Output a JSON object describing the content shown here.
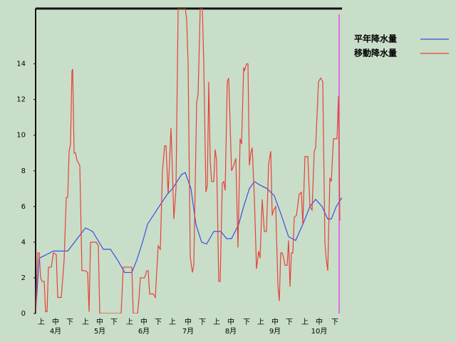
{
  "chart_data": {
    "type": "line",
    "xlim": [
      0,
      215
    ],
    "ylim": [
      0,
      17.1
    ],
    "yticks": [
      0,
      2,
      4,
      6,
      8,
      10,
      12,
      14
    ],
    "xticks": [
      {
        "value": 4,
        "label": "上"
      },
      {
        "value": 14,
        "label": "中"
      },
      {
        "value": 24,
        "label": "下"
      },
      {
        "value": 35,
        "label": "上"
      },
      {
        "value": 45,
        "label": "中"
      },
      {
        "value": 55,
        "label": "下"
      },
      {
        "value": 66,
        "label": "上"
      },
      {
        "value": 76,
        "label": "中"
      },
      {
        "value": 86,
        "label": "下"
      },
      {
        "value": 96,
        "label": "上"
      },
      {
        "value": 107,
        "label": "中"
      },
      {
        "value": 117,
        "label": "下"
      },
      {
        "value": 127,
        "label": "上"
      },
      {
        "value": 137,
        "label": "中"
      },
      {
        "value": 148,
        "label": "下"
      },
      {
        "value": 158,
        "label": "上"
      },
      {
        "value": 168,
        "label": "中"
      },
      {
        "value": 178,
        "label": "下"
      },
      {
        "value": 189,
        "label": "上"
      },
      {
        "value": 199,
        "label": "中"
      },
      {
        "value": 210,
        "label": "下"
      }
    ],
    "month_ticks": [
      {
        "value": 14,
        "label": "4月"
      },
      {
        "value": 45,
        "label": "5月"
      },
      {
        "value": 76,
        "label": "6月"
      },
      {
        "value": 107,
        "label": "7月"
      },
      {
        "value": 137,
        "label": "8月"
      },
      {
        "value": 168,
        "label": "9月"
      },
      {
        "value": 199,
        "label": "10月"
      }
    ],
    "vline": 213,
    "series": [
      {
        "name": "平年降水量",
        "color": "#3a4fe0",
        "x": [
          0,
          2.5,
          10,
          12.5,
          22.5,
          35,
          40,
          47.5,
          52.5,
          57.5,
          62.5,
          67.5,
          71,
          75,
          78.5,
          85,
          92.5,
          96,
          102.5,
          105,
          109,
          112.5,
          116.5,
          120,
          125,
          130,
          134,
          137.5,
          142.5,
          146,
          150,
          153.5,
          157.5,
          162.5,
          167.5,
          172.5,
          177.5,
          182.5,
          187.5,
          192.5,
          196.5,
          201,
          205,
          207.5,
          211,
          215
        ],
        "values": [
          0,
          3.1,
          3.4,
          3.5,
          3.5,
          4.8,
          4.6,
          3.6,
          3.6,
          3,
          2.3,
          2.3,
          3,
          4,
          5,
          5.8,
          6.7,
          7,
          7.8,
          7.9,
          7,
          5,
          4,
          3.9,
          4.6,
          4.6,
          4.2,
          4.2,
          5,
          6,
          7,
          7.4,
          7.2,
          7,
          6.6,
          5.5,
          4.3,
          4.1,
          5,
          6,
          6.4,
          6,
          5.3,
          5.3,
          6,
          6.5
        ]
      },
      {
        "name": "移動降水量",
        "color": "#e8403a",
        "x": [
          0,
          1.5,
          2.5,
          3.5,
          4.5,
          6,
          7,
          8,
          9,
          11,
          12.5,
          14.5,
          15.5,
          18,
          20,
          21.5,
          22.5,
          23.5,
          24.5,
          25.5,
          26,
          27,
          28,
          29,
          31,
          32.5,
          35,
          36.5,
          37.5,
          38.5,
          42.5,
          44,
          45,
          60,
          61.5,
          67.5,
          68.5,
          71.5,
          72.5,
          73.5,
          76.5,
          78,
          79,
          80,
          82.5,
          84,
          86,
          87.5,
          89,
          90.5,
          91.5,
          93,
          95,
          96,
          97,
          98.5,
          100,
          101.5,
          103,
          105,
          106,
          107,
          108.5,
          110,
          111,
          113,
          114,
          115.5,
          117,
          118,
          119.5,
          120.5,
          121.5,
          122.5,
          123.5,
          125,
          126,
          127,
          128.5,
          129.5,
          131,
          132,
          133,
          134.5,
          135.5,
          137.5,
          139,
          140.5,
          142,
          143.5,
          144.5,
          146,
          146.5,
          148,
          149,
          150,
          151,
          152,
          153.5,
          155,
          156.5,
          157.5,
          159,
          160.5,
          162,
          163.5,
          165,
          166,
          167,
          168.5,
          170,
          171,
          172,
          173,
          174,
          175,
          176.5,
          177.5,
          178.5,
          179.5,
          180.5,
          181.5,
          183,
          185,
          186.5,
          187.5,
          189,
          191,
          192.5,
          194,
          195.5,
          196.5,
          198.5,
          200,
          201.5,
          203,
          204,
          205,
          206.5,
          207.5,
          209,
          211.5,
          212.5,
          213.5
        ],
        "values": [
          0,
          3.4,
          3.4,
          2,
          1.8,
          1.8,
          0.1,
          0.1,
          2.6,
          2.6,
          3.4,
          3.3,
          0.9,
          0.9,
          3,
          6.5,
          6.5,
          9.1,
          9.5,
          13.6,
          13.7,
          9,
          9,
          8.6,
          8.3,
          2.4,
          2.4,
          2.3,
          0.1,
          4,
          4,
          3.8,
          0,
          0,
          2.6,
          2.6,
          0,
          0,
          0.8,
          2,
          2,
          2.4,
          2.4,
          1.1,
          1.1,
          0.9,
          3.8,
          3.6,
          8,
          9.4,
          9.4,
          6.7,
          10.4,
          8,
          5.3,
          7,
          17.1,
          17.1,
          17.1,
          17.1,
          16.5,
          14,
          3.2,
          2.3,
          2.7,
          11.8,
          12.3,
          17.1,
          17.1,
          14,
          6.8,
          7.2,
          13,
          8.6,
          7.4,
          7.4,
          9.2,
          8.6,
          1.8,
          1.8,
          7.3,
          7.4,
          6.9,
          13,
          13.2,
          8,
          8.3,
          8.7,
          3.7,
          9.8,
          9.5,
          13.8,
          13.6,
          14,
          14,
          8.3,
          9,
          9.3,
          6.5,
          2.5,
          3.5,
          3.1,
          6.4,
          4.6,
          4.6,
          8.4,
          9.1,
          5.5,
          5.8,
          6,
          1.6,
          0.7,
          3.4,
          3.4,
          3.1,
          2.7,
          2.7,
          4.1,
          1.5,
          3.4,
          3.4,
          5.4,
          5.5,
          6.7,
          6.8,
          5,
          8.8,
          8.8,
          6,
          5.8,
          9.1,
          9.3,
          13,
          13.2,
          13,
          4,
          3,
          2.4,
          7.6,
          7.4,
          9.8,
          9.8,
          12.2,
          5.2
        ]
      }
    ]
  }
}
